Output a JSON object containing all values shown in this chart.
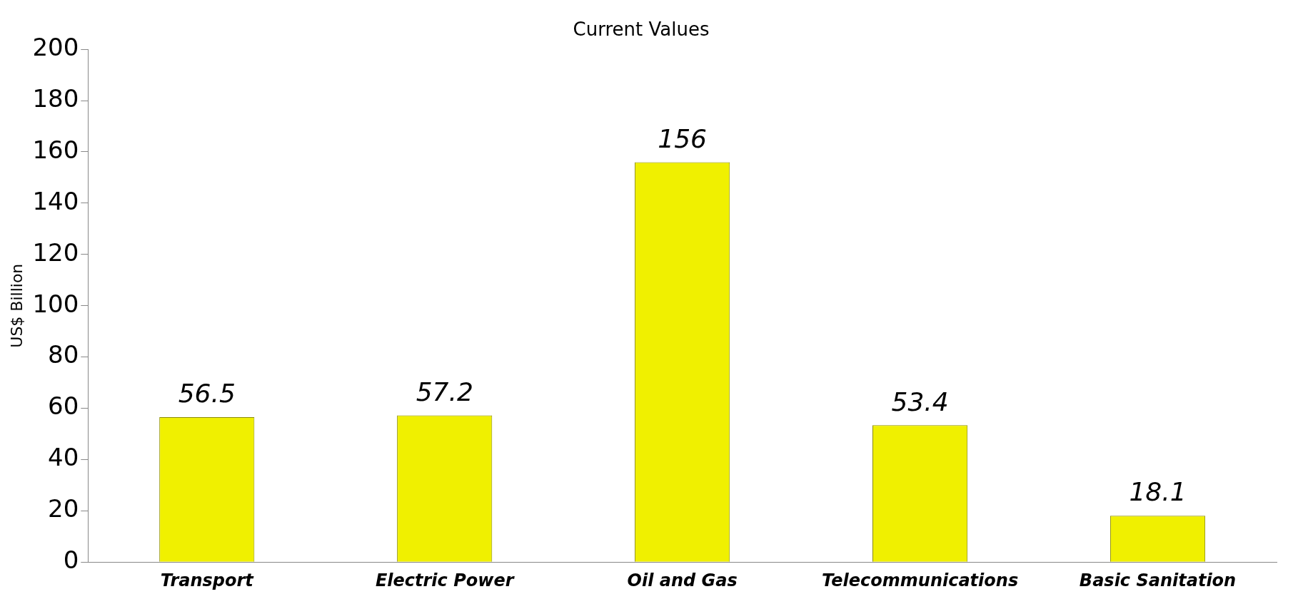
{
  "chart_data": {
    "type": "bar",
    "title": "Current Values",
    "ylabel": "US$ Billion",
    "categories": [
      "Transport",
      "Electric Power",
      "Oil and Gas",
      "Telecommunications",
      "Basic Sanitation"
    ],
    "values": [
      56.5,
      57.2,
      156,
      53.4,
      18.1
    ],
    "color": "#f0f000",
    "ylim": [
      0,
      200
    ],
    "yticks": [
      0,
      20,
      40,
      60,
      80,
      100,
      120,
      140,
      160,
      180,
      200
    ],
    "grid": false,
    "legend": false,
    "data_labels": true
  }
}
